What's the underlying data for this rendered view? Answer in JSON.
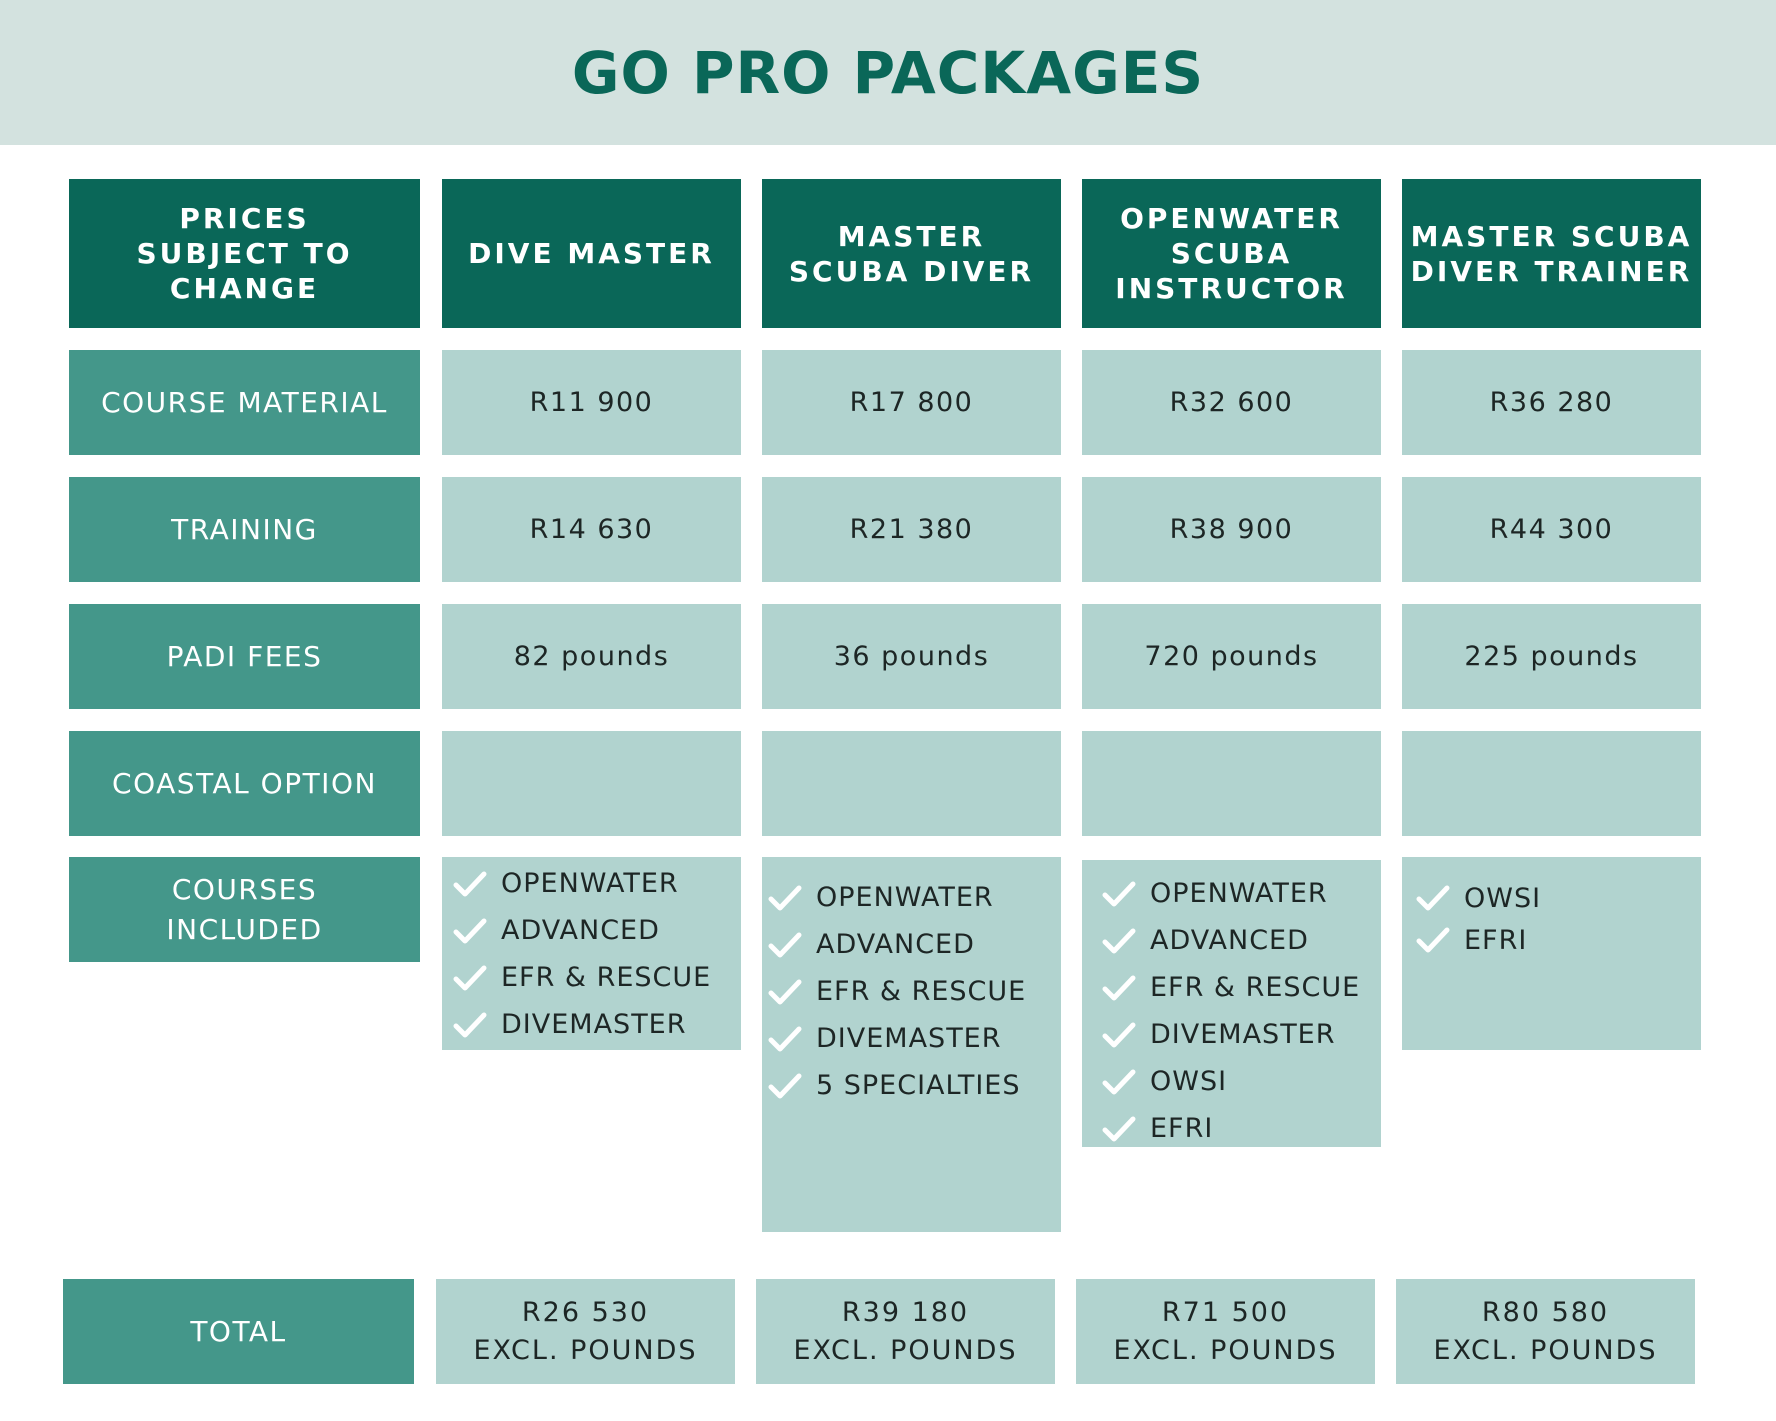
{
  "title": "GO PRO PACKAGES",
  "colors": {
    "banner": "#d3e2df",
    "title": "#0a6758",
    "header_fill": "#0a6758",
    "label_fill": "#44978a",
    "value_fill": "#b1d3cf",
    "check": "#ffffff"
  },
  "header": {
    "corner": [
      "PRICES",
      "SUBJECT TO",
      "CHANGE"
    ],
    "packages": [
      [
        "DIVE MASTER"
      ],
      [
        "MASTER",
        "SCUBA DIVER"
      ],
      [
        "OPENWATER",
        "SCUBA",
        "INSTRUCTOR"
      ],
      [
        "MASTER SCUBA",
        "DIVER TRAINER"
      ]
    ]
  },
  "rows": [
    {
      "label": [
        "COURSE MATERIAL"
      ],
      "values": [
        "R11 900",
        "R17 800",
        "R32 600",
        "R36 280"
      ]
    },
    {
      "label": [
        "TRAINING"
      ],
      "values": [
        "R14 630",
        "R21 380",
        "R38 900",
        "R44 300"
      ]
    },
    {
      "label": [
        "PADI FEES"
      ],
      "values": [
        "82 pounds",
        "36 pounds",
        "720 pounds",
        "225 pounds"
      ]
    },
    {
      "label": [
        "COASTAL OPTION"
      ],
      "values": [
        "",
        "",
        "",
        ""
      ]
    }
  ],
  "courses": {
    "label": [
      "COURSES",
      "INCLUDED"
    ],
    "check_icon": "checkmark-icon",
    "lists": [
      [
        "OPENWATER",
        "ADVANCED",
        "EFR & RESCUE",
        "DIVEMASTER"
      ],
      [
        "OPENWATER",
        "ADVANCED",
        "EFR & RESCUE",
        "DIVEMASTER",
        "5 SPECIALTIES"
      ],
      [
        "OPENWATER",
        "ADVANCED",
        "EFR & RESCUE",
        "DIVEMASTER",
        "OWSI",
        "EFRI"
      ],
      [
        "OWSI",
        "EFRI"
      ]
    ]
  },
  "total": {
    "label": [
      "TOTAL"
    ],
    "values": [
      [
        "R26 530",
        "EXCL. POUNDS"
      ],
      [
        "R39 180",
        "EXCL. POUNDS"
      ],
      [
        "R71 500",
        "EXCL. POUNDS"
      ],
      [
        "R80 580",
        "EXCL. POUNDS"
      ]
    ]
  }
}
